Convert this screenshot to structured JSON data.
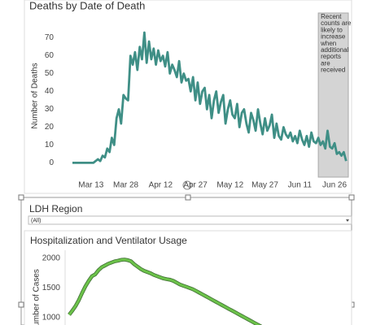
{
  "chart_data": [
    {
      "type": "line",
      "title": "Deaths by Date of Death",
      "y_label": "Number of Deaths",
      "categories": [
        null,
        null,
        null,
        null,
        null,
        null,
        null,
        null,
        "Mar 13",
        null,
        null,
        null,
        null,
        null,
        null,
        null,
        null,
        null,
        null,
        null,
        null,
        null,
        null,
        "Mar 28",
        null,
        null,
        null,
        null,
        null,
        null,
        null,
        null,
        null,
        null,
        null,
        null,
        null,
        null,
        "Apr 12",
        null,
        null,
        null,
        null,
        null,
        null,
        null,
        null,
        null,
        null,
        null,
        null,
        null,
        null,
        "Apr 27",
        null,
        null,
        null,
        null,
        null,
        null,
        null,
        null,
        null,
        null,
        null,
        null,
        null,
        null,
        "May 12",
        null,
        null,
        null,
        null,
        null,
        null,
        null,
        null,
        null,
        null,
        null,
        null,
        null,
        null,
        "May 27",
        null,
        null,
        null,
        null,
        null,
        null,
        null,
        null,
        null,
        null,
        null,
        null,
        null,
        null,
        "Jun 11",
        null,
        null,
        null,
        null,
        null,
        null,
        null,
        null,
        null,
        null,
        null,
        null,
        null,
        null,
        "Jun 26",
        null,
        null,
        null,
        null,
        null
      ],
      "values": [
        0,
        0,
        0,
        0,
        0,
        0,
        0,
        0,
        0,
        0,
        1,
        2,
        1,
        4,
        3,
        8,
        6,
        14,
        10,
        25,
        30,
        22,
        38,
        36,
        35,
        60,
        55,
        62,
        52,
        65,
        58,
        73,
        56,
        68,
        58,
        64,
        55,
        63,
        57,
        60,
        54,
        62,
        50,
        55,
        52,
        48,
        57,
        45,
        50,
        46,
        47,
        40,
        48,
        35,
        45,
        33,
        40,
        42,
        30,
        38,
        25,
        35,
        40,
        28,
        34,
        38,
        22,
        30,
        35,
        27,
        25,
        33,
        20,
        28,
        30,
        22,
        17,
        28,
        24,
        18,
        30,
        22,
        16,
        25,
        18,
        21,
        27,
        14,
        22,
        15,
        13,
        20,
        16,
        14,
        17,
        12,
        15,
        11,
        18,
        13,
        10,
        15,
        9,
        17,
        12,
        11,
        14,
        10,
        12,
        8,
        18,
        9,
        8,
        11,
        5,
        6,
        4,
        6,
        1
      ],
      "color": "#3f8f86",
      "ylim": [
        -3,
        73
      ],
      "yticks": [
        0,
        10,
        20,
        30,
        40,
        50,
        60,
        70
      ],
      "annotation": {
        "text": "Recent counts are likely to increase when additional reports are received",
        "from_index": 106
      }
    },
    {
      "type": "line",
      "title": "Hospitalization and Ventilator Usage",
      "y_label": "Number of Cases",
      "values": [
        1050,
        1120,
        1200,
        1300,
        1420,
        1530,
        1620,
        1700,
        1730,
        1800,
        1850,
        1880,
        1910,
        1930,
        1950,
        1960,
        1975,
        1980,
        1970,
        1950,
        1900,
        1860,
        1820,
        1790,
        1770,
        1750,
        1720,
        1700,
        1680,
        1660,
        1650,
        1640,
        1620,
        1590,
        1560,
        1540,
        1520,
        1500,
        1480,
        1450,
        1420,
        1390,
        1360,
        1330,
        1300,
        1270,
        1240,
        1210,
        1180,
        1150,
        1120,
        1090,
        1060,
        1030,
        1000,
        970,
        940,
        910,
        880,
        850
      ],
      "color": "#6cc24a",
      "ylim": [
        0,
        2000
      ],
      "yticks": [
        1000,
        1500,
        2000
      ]
    }
  ],
  "filter": {
    "label": "LDH Region",
    "value": "(All)"
  }
}
